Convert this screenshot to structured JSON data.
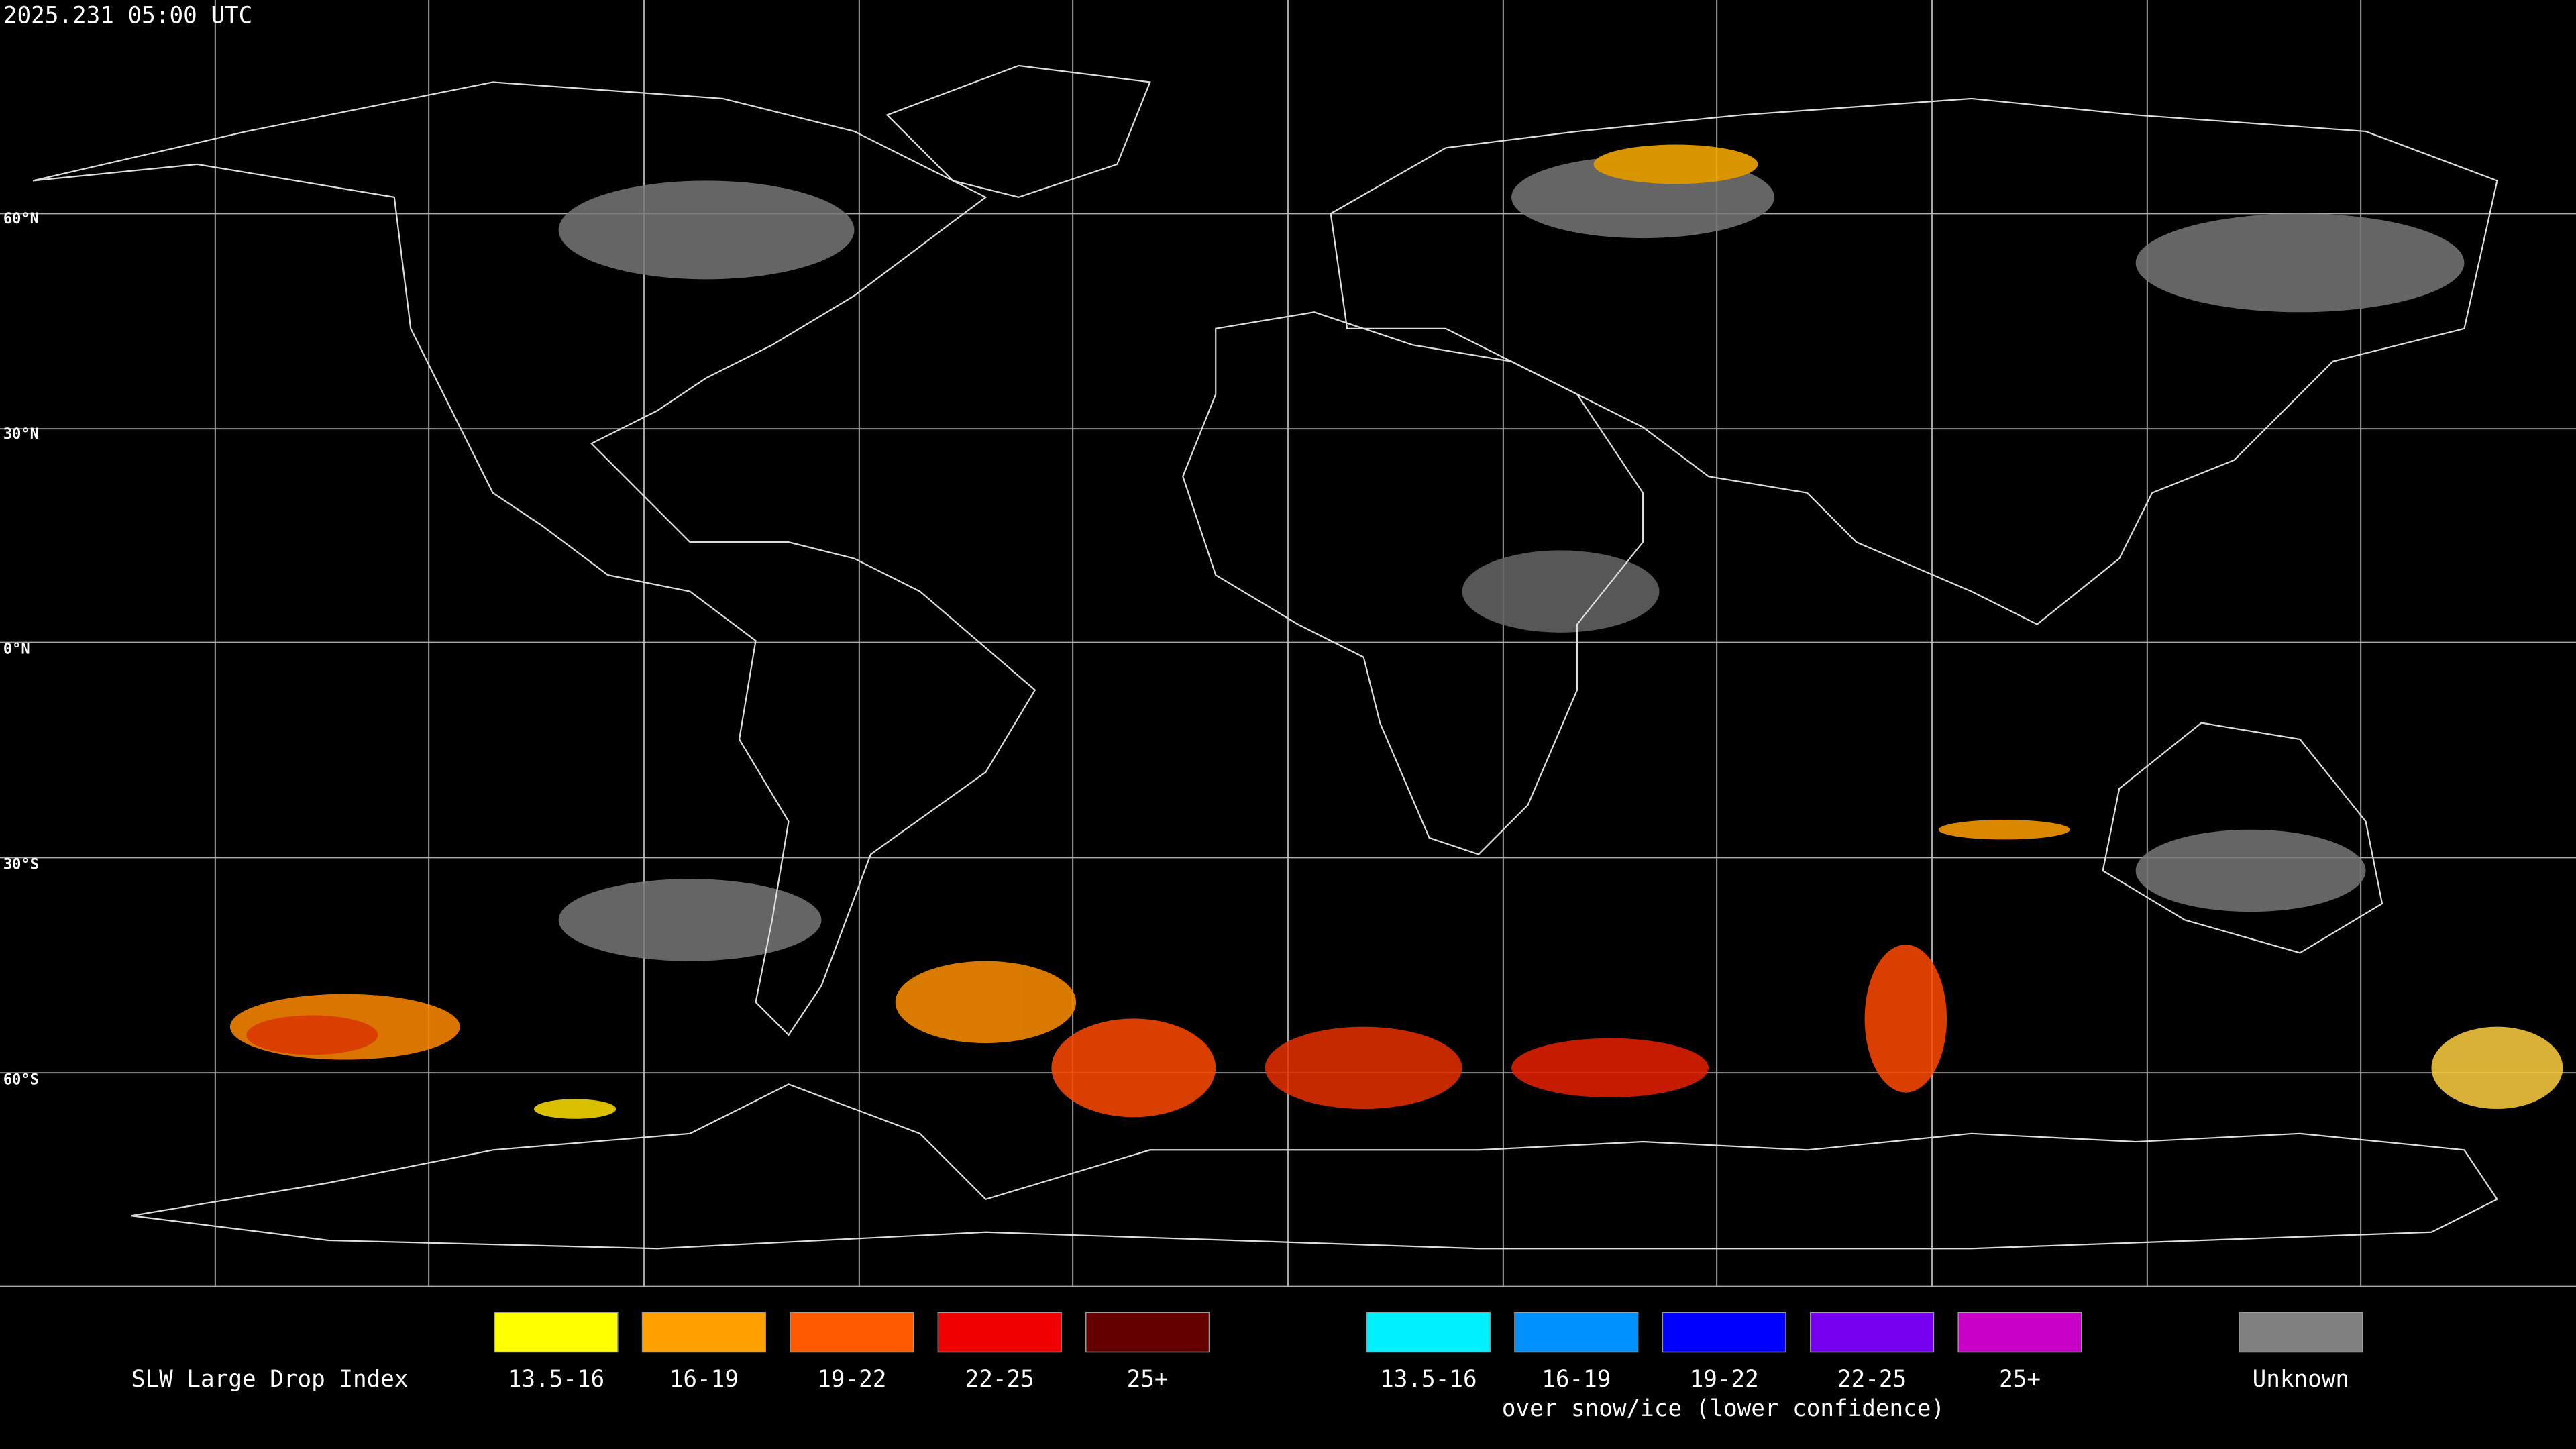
{
  "timestamp": "2025.231 05:00 UTC",
  "latitude_labels": [
    "60°N",
    "30°N",
    "0°N",
    "30°S",
    "60°S"
  ],
  "legend": {
    "title": "SLW Large Drop Index",
    "items": [
      {
        "label": "13.5-16",
        "color": "#ffff00"
      },
      {
        "label": "16-19",
        "color": "#ffa000"
      },
      {
        "label": "19-22",
        "color": "#ff5a00"
      },
      {
        "label": "22-25",
        "color": "#f00000"
      },
      {
        "label": "25+",
        "color": "#640000"
      }
    ],
    "snow_ice_items": [
      {
        "label": "13.5-16",
        "color": "#00f0ff"
      },
      {
        "label": "16-19",
        "color": "#0090ff"
      },
      {
        "label": "19-22",
        "color": "#0000ff"
      },
      {
        "label": "22-25",
        "color": "#7800f0"
      },
      {
        "label": "25+",
        "color": "#c800c8"
      }
    ],
    "snow_ice_caption": "over snow/ice (lower confidence)",
    "unknown": {
      "label": "Unknown",
      "color": "#808080"
    }
  }
}
